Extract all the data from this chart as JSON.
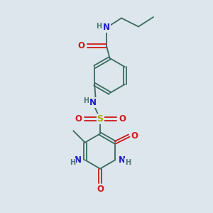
{
  "bg_color": "#dce6ec",
  "bond_color": "#3a6b5e",
  "n_color": "#1a1acc",
  "o_color": "#cc1a1a",
  "s_color": "#aaaa00",
  "h_color": "#4a7a70",
  "font_size_atom": 8.5,
  "font_size_h": 7.0,
  "figsize": [
    3.0,
    3.0
  ],
  "dpi": 100,
  "lw": 1.3,
  "xlim": [
    0,
    10
  ],
  "ylim": [
    0,
    10
  ]
}
